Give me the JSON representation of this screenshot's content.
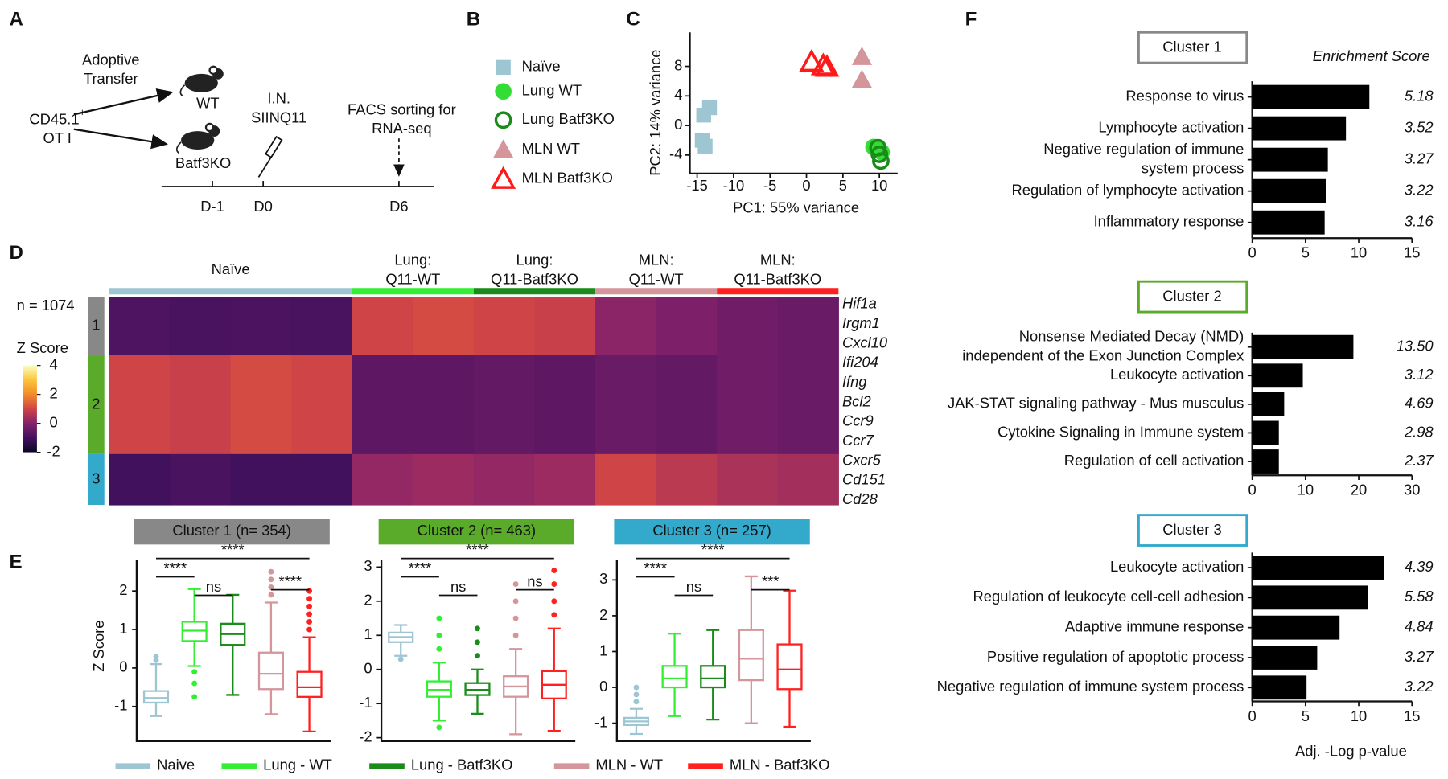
{
  "panel_labels": [
    "A",
    "B",
    "C",
    "D",
    "E",
    "F"
  ],
  "schematic": {
    "donor": "CD45.1",
    "donor_sup": "+",
    "donor_line2": "OT I",
    "transfer": "Adoptive\nTransfer",
    "mouse_wt": "WT",
    "mouse_ko": "Batf3KO",
    "injection": "I.N.\nSIINQ11",
    "sorting": "FACS sorting for\nRNA-seq",
    "timepoints": [
      "D-1",
      "D0",
      "D6"
    ]
  },
  "enrichment": {
    "score_header": "Enrichment Score",
    "xlabel": "Adj. -Log p-value"
  },
  "chart_data": [
    {
      "type": "scatter",
      "xlabel": "PC1: 55% variance",
      "ylabel": "PC2: 14% variance",
      "xlim": [
        -16,
        12.5
      ],
      "ylim": [
        -6.5,
        12.6
      ],
      "xticks": [
        -15,
        -10,
        -5,
        0,
        5,
        10
      ],
      "yticks": [
        -4,
        0,
        4,
        8
      ],
      "series": [
        {
          "name": "Naïve",
          "color": "#9ec5d2",
          "marker": "square",
          "x": [
            -13.3,
            -14.1,
            -14.3,
            -13.9
          ],
          "y": [
            2.4,
            1.4,
            -2.0,
            -2.8
          ]
        },
        {
          "name": "Lung WT",
          "color": "#33dd33",
          "marker": "circle",
          "x": [
            9.2,
            9.8,
            10.3
          ],
          "y": [
            -2.9,
            -3.2,
            -3.6
          ]
        },
        {
          "name": "Lung Batf3KO",
          "color": "#1a8a1a",
          "marker": "circle-open",
          "x": [
            9.8,
            10.0,
            10.2
          ],
          "y": [
            -3.0,
            -3.9,
            -4.8
          ]
        },
        {
          "name": "MLN WT",
          "color": "#d4959b",
          "marker": "triangle",
          "x": [
            7.6,
            7.6
          ],
          "y": [
            9.3,
            6.2
          ]
        },
        {
          "name": "MLN Batf3KO",
          "color": "#ff1a1a",
          "marker": "triangle-open",
          "x": [
            0.7,
            2.3,
            2.8
          ],
          "y": [
            8.6,
            8.1,
            7.9
          ]
        }
      ]
    },
    {
      "type": "heatmap",
      "n_label": "n = 1074",
      "legend_title": "Z Score",
      "zlim": [
        -2,
        4
      ],
      "zticks": [
        -2,
        0,
        2,
        4
      ],
      "groups": [
        {
          "name": "Naïve",
          "color": "#9ec5d2",
          "columns": 4
        },
        {
          "name": "Lung:\nQ11-WT",
          "color": "#33ee33",
          "columns": 2
        },
        {
          "name": "Lung:\nQ11-Batf3KO",
          "color": "#1a8c1a",
          "columns": 2
        },
        {
          "name": "MLN:\nQ11-WT",
          "color": "#d4959b",
          "columns": 2
        },
        {
          "name": "MLN:\nQ11-Batf3KO",
          "color": "#ff2020",
          "columns": 2
        }
      ],
      "clusters": [
        {
          "label": "1",
          "color": "#888888"
        },
        {
          "label": "2",
          "color": "#5aab2a"
        },
        {
          "label": "3",
          "color": "#33aacc"
        }
      ],
      "values": [
        [
          -0.8,
          -0.9,
          -0.85,
          -0.9,
          1.0,
          1.1,
          1.0,
          0.9,
          0.1,
          -0.1,
          -0.3,
          -0.4
        ],
        [
          1.0,
          0.9,
          1.1,
          1.0,
          -0.6,
          -0.6,
          -0.5,
          -0.6,
          -0.4,
          -0.5,
          -0.3,
          -0.4
        ],
        [
          -1.0,
          -0.9,
          -1.0,
          -1.0,
          0.2,
          0.3,
          0.2,
          0.3,
          1.0,
          0.7,
          0.5,
          0.4
        ]
      ],
      "genes": [
        "Hif1a",
        "Irgm1",
        "Cxcl10",
        "Ifi204",
        "Ifng",
        "Bcl2",
        "Ccr9",
        "Ccr7",
        "Cxcr5",
        "Cd151",
        "Cd28"
      ]
    },
    {
      "type": "box",
      "ylabel": "Z Score",
      "series": [
        {
          "name": "Naive",
          "color": "#9ec5d2"
        },
        {
          "name": "Lung - WT",
          "color": "#33ee33"
        },
        {
          "name": "Lung - Batf3KO",
          "color": "#1a8c1a"
        },
        {
          "name": "MLN - WT",
          "color": "#d4959b"
        },
        {
          "name": "MLN - Batf3KO",
          "color": "#ff2020"
        }
      ],
      "panels": [
        {
          "title": "Cluster 1 (n= 354)",
          "color": "#888888",
          "ylim": [
            -1.9,
            2.8
          ],
          "yticks": [
            -1,
            0,
            1,
            2
          ],
          "boxes": [
            [
              -1.25,
              -0.9,
              -0.78,
              -0.6,
              0.1
            ],
            [
              0.05,
              0.7,
              0.97,
              1.2,
              2.05
            ],
            [
              -0.7,
              0.6,
              0.88,
              1.15,
              1.9
            ],
            [
              -1.2,
              -0.55,
              -0.15,
              0.4,
              1.7
            ],
            [
              -1.65,
              -0.75,
              -0.5,
              -0.1,
              0.8
            ]
          ],
          "outliers": [
            [
              0.2,
              0.3
            ],
            [
              -0.1,
              -0.4,
              -0.75
            ],
            [],
            [
              1.9,
              2.1,
              2.3,
              2.5
            ],
            [
              1.0,
              1.2,
              1.4,
              1.6,
              1.8,
              2.0
            ]
          ],
          "comparisons": [
            {
              "pair": [
                0,
                4
              ],
              "label": "****"
            },
            {
              "pair": [
                0,
                1
              ],
              "label": "****"
            },
            {
              "pair": [
                1,
                2
              ],
              "label": "ns"
            },
            {
              "pair": [
                3,
                4
              ],
              "label": "****"
            }
          ]
        },
        {
          "title": "Cluster 2 (n= 463)",
          "color": "#5aab2a",
          "ylim": [
            -2.1,
            3.2
          ],
          "yticks": [
            -2,
            -1,
            0,
            1,
            2,
            3
          ],
          "boxes": [
            [
              0.4,
              0.8,
              0.95,
              1.08,
              1.3
            ],
            [
              -1.5,
              -0.8,
              -0.6,
              -0.35,
              0.2
            ],
            [
              -1.3,
              -0.75,
              -0.6,
              -0.4,
              0.0
            ],
            [
              -1.9,
              -0.8,
              -0.5,
              -0.2,
              0.6
            ],
            [
              -1.8,
              -0.85,
              -0.45,
              -0.05,
              1.2
            ]
          ],
          "outliers": [
            [
              0.3
            ],
            [
              0.6,
              1.0,
              1.5,
              -1.7
            ],
            [
              0.4,
              0.8,
              1.2
            ],
            [
              1.0,
              1.5,
              2.0,
              2.5
            ],
            [
              1.6,
              2.0,
              2.5,
              2.9
            ]
          ],
          "comparisons": [
            {
              "pair": [
                0,
                4
              ],
              "label": "****"
            },
            {
              "pair": [
                0,
                1
              ],
              "label": "****"
            },
            {
              "pair": [
                1,
                2
              ],
              "label": "ns"
            },
            {
              "pair": [
                3,
                4
              ],
              "label": "ns"
            }
          ]
        },
        {
          "title": "Cluster 3 (n= 257)",
          "color": "#33aacc",
          "ylim": [
            -1.5,
            3.55
          ],
          "yticks": [
            -1,
            0,
            1,
            2,
            3
          ],
          "boxes": [
            [
              -1.3,
              -1.05,
              -0.95,
              -0.85,
              -0.6
            ],
            [
              -0.8,
              0.0,
              0.25,
              0.6,
              1.5
            ],
            [
              -0.9,
              0.0,
              0.25,
              0.6,
              1.6
            ],
            [
              -1.0,
              0.2,
              0.8,
              1.6,
              3.1
            ],
            [
              -1.1,
              -0.05,
              0.5,
              1.2,
              2.7
            ]
          ],
          "outliers": [
            [
              -0.4,
              -0.2,
              0.0
            ],
            [],
            [],
            [],
            []
          ],
          "comparisons": [
            {
              "pair": [
                0,
                4
              ],
              "label": "****"
            },
            {
              "pair": [
                0,
                1
              ],
              "label": "****"
            },
            {
              "pair": [
                1,
                2
              ],
              "label": "ns"
            },
            {
              "pair": [
                3,
                4
              ],
              "label": "***"
            }
          ]
        }
      ]
    },
    {
      "type": "hbar",
      "title": "Cluster 1",
      "color": "#888888",
      "bar_color": "#000000",
      "xlim": [
        0,
        15
      ],
      "xticks": [
        0,
        5,
        10,
        15
      ],
      "categories": [
        "Response to virus",
        "Lymphocyte activation",
        "Negative regulation of immune\nsystem process",
        "Regulation of lymphocyte activation",
        "Inflammatory response"
      ],
      "values": [
        11.0,
        8.8,
        7.1,
        6.9,
        6.8
      ],
      "enrichment_scores": [
        5.18,
        3.52,
        3.27,
        3.22,
        3.16
      ]
    },
    {
      "type": "hbar",
      "title": "Cluster 2",
      "color": "#5aab2a",
      "bar_color": "#000000",
      "xlim": [
        0,
        30
      ],
      "xticks": [
        0,
        10,
        20,
        30
      ],
      "categories": [
        "Nonsense Mediated Decay (NMD)\nindependent of the Exon Junction Complex",
        "Leukocyte activation",
        "JAK-STAT signaling pathway - Mus musculus",
        "Cytokine Signaling in Immune system",
        "Regulation of cell activation"
      ],
      "values": [
        19.0,
        9.5,
        6.0,
        5.0,
        5.0
      ],
      "enrichment_scores": [
        {
          "value": 13.5,
          "label": "13.50"
        },
        3.12,
        4.69,
        2.98,
        2.37
      ]
    },
    {
      "type": "hbar",
      "title": "Cluster 3",
      "color": "#33aacc",
      "bar_color": "#000000",
      "xlim": [
        0,
        15
      ],
      "xticks": [
        0,
        5,
        10,
        15
      ],
      "categories": [
        "Leukocyte activation",
        "Regulation of leukocyte cell-cell adhesion",
        "Adaptive immune response",
        "Positive regulation of apoptotic process",
        "Negative regulation of immune system process"
      ],
      "values": [
        12.4,
        10.9,
        8.2,
        6.1,
        5.1
      ],
      "enrichment_scores": [
        4.39,
        5.58,
        4.84,
        3.27,
        3.22
      ]
    }
  ]
}
